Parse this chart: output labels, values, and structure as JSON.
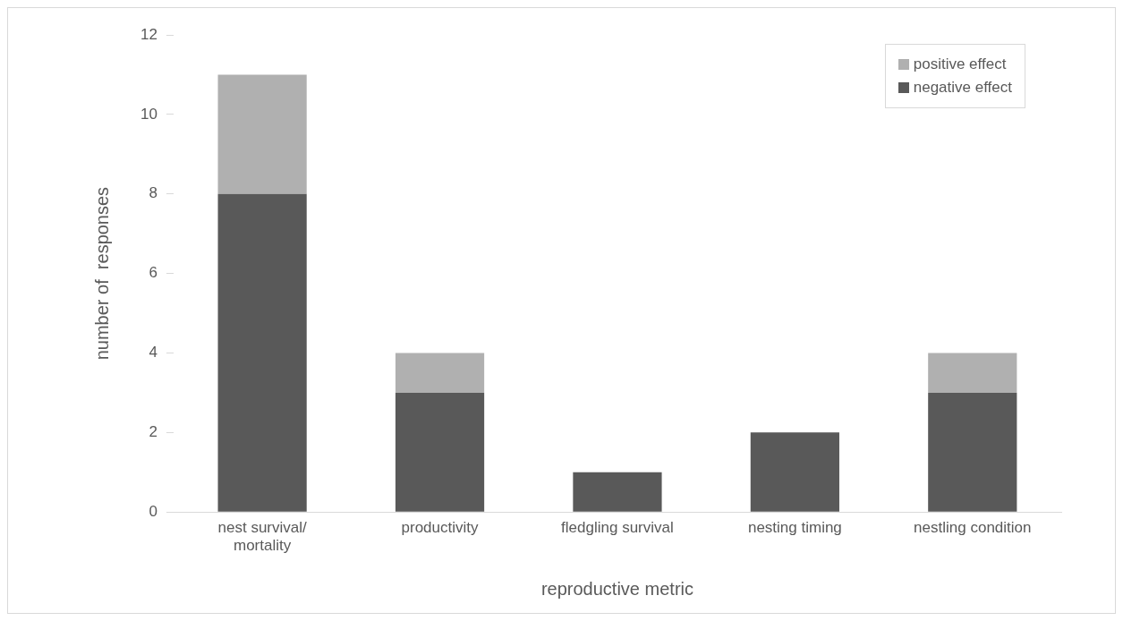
{
  "chart_data": {
    "type": "bar",
    "stacked": true,
    "xlabel": "reproductive metric",
    "ylabel": "number of  responses",
    "categories": [
      "nest survival/ mortality",
      "productivity",
      "fledgling survival",
      "nesting timing",
      "nestling condition"
    ],
    "series": [
      {
        "name": "negative effect",
        "color": "#595959",
        "values": [
          8,
          3,
          1,
          2,
          3
        ]
      },
      {
        "name": "positive effect",
        "color": "#b0b0b0",
        "values": [
          3,
          1,
          0,
          0,
          1
        ]
      }
    ],
    "ylim": [
      0,
      12
    ],
    "yticks": [
      0,
      2,
      4,
      6,
      8,
      10,
      12
    ],
    "grid": false,
    "legend": "top right"
  }
}
